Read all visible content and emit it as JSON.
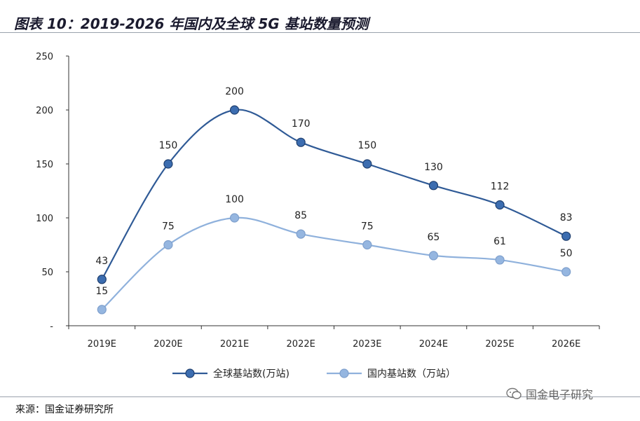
{
  "title": "图表 10：2019-2026 年国内及全球 5G 基站数量预测",
  "source": "来源：国金证券研究所",
  "watermark": "国金电子研究",
  "chart_data": {
    "type": "line",
    "categories": [
      "2019E",
      "2020E",
      "2021E",
      "2022E",
      "2023E",
      "2024E",
      "2025E",
      "2026E"
    ],
    "series": [
      {
        "name": "全球基站数(万站)",
        "values": [
          43,
          150,
          200,
          170,
          150,
          130,
          112,
          83
        ],
        "color": "#2f5a96",
        "marker": "#3c6db0"
      },
      {
        "name": "国内基站数（万站）",
        "values": [
          15,
          75,
          100,
          85,
          75,
          65,
          61,
          50
        ],
        "color": "#8fb1dc",
        "marker": "#95b6e0"
      }
    ],
    "yticks": [
      "-",
      "50",
      "100",
      "150",
      "200",
      "250"
    ],
    "ylim": [
      0,
      250
    ],
    "grid": false,
    "legend": "bottom-center",
    "xlabel": "",
    "ylabel": ""
  }
}
